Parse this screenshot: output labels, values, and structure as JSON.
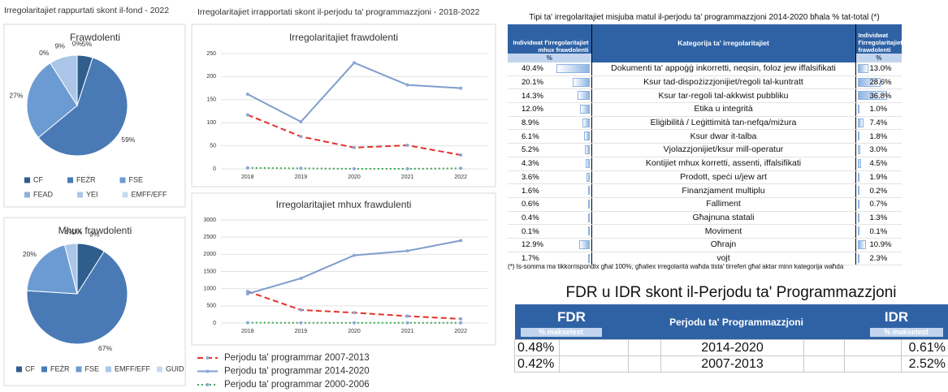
{
  "section_titles": [
    "Irregolaritajiet rappurtati skont il-fond - 2022",
    "Irregolaritajiet irrapportati skont il-perjodu ta' programmazzjoni - 2018-2022"
  ],
  "chart_data": [
    {
      "type": "pie",
      "title": "Frawdolenti",
      "categories": [
        "CF",
        "FEŻR",
        "FSE",
        "FEAD",
        "YEI",
        "EMFF/EFF"
      ],
      "values": [
        5,
        59,
        27,
        0,
        9,
        0
      ],
      "value_labels": [
        "5%",
        "59%",
        "27%",
        "0%",
        "9%",
        "0%"
      ],
      "colors": [
        "#2f5d8c",
        "#4a7ab6",
        "#6b9bd2",
        "#8cb1de",
        "#abc6e8",
        "#c8daf0"
      ]
    },
    {
      "type": "pie",
      "title": "Mhux frawdolenti",
      "categories": [
        "CF",
        "FEŻR",
        "FSE",
        "EMFF/EFF",
        "GUID"
      ],
      "values": [
        9,
        67,
        20,
        4,
        0
      ],
      "value_labels": [
        "9%",
        "67%",
        "20%",
        "4%",
        "0%"
      ],
      "colors": [
        "#2f5d8c",
        "#4a7ab6",
        "#6b9bd2",
        "#abc6e8",
        "#c8daf0"
      ]
    },
    {
      "type": "line",
      "title": "Irregolaritajiet frawdolenti",
      "categories": [
        "2018",
        "2019",
        "2020",
        "2021",
        "2022"
      ],
      "ylim": [
        0,
        250
      ],
      "yticks": [
        0,
        50,
        100,
        150,
        200,
        250
      ],
      "grid": true,
      "series": [
        {
          "name": "Perjodu ta' programmar 2007-2013",
          "color": "#e5322b",
          "style": "dashed",
          "values": [
            117,
            70,
            46,
            51,
            30
          ]
        },
        {
          "name": "Perjodu ta' programmar 2014-2020",
          "color": "#7f9dcc",
          "style": "solid",
          "values": [
            162,
            102,
            230,
            182,
            175
          ]
        },
        {
          "name": "Perjodu ta' programmar 2000-2006",
          "color": "#3aa655",
          "style": "dotted",
          "values": [
            2,
            1,
            0,
            0,
            1
          ]
        }
      ]
    },
    {
      "type": "line",
      "title": "Irregolaritajiet mhux frawdulenti",
      "categories": [
        "2018",
        "2019",
        "2020",
        "2021",
        "2022"
      ],
      "ylim": [
        0,
        3000
      ],
      "yticks": [
        0,
        500,
        1000,
        1500,
        2000,
        2500,
        3000
      ],
      "grid": true,
      "series": [
        {
          "color": "#e5322b",
          "style": "dashed",
          "values": [
            920,
            380,
            300,
            200,
            120
          ]
        },
        {
          "color": "#7f9dcc",
          "style": "solid",
          "values": [
            850,
            1300,
            1970,
            2100,
            2400
          ]
        },
        {
          "color": "#3aa655",
          "style": "dotted",
          "values": [
            10,
            5,
            5,
            5,
            5
          ]
        }
      ]
    }
  ],
  "table1": {
    "title": "Tipi ta' irregolaritajiet misjuba matul il-perjodu ta' programmazzjoni 2014-2020 bħala % tat-total (*)",
    "headers": [
      "Individwat f'irregolaritajiet mhux frawdolenti",
      "Kategorija ta' irregolaritajiet",
      "Individwat f'irregolaritajiet frawdolenti"
    ],
    "subheaders": [
      "%",
      "%"
    ],
    "bar_color": "#8db3e2",
    "rows": [
      {
        "left": 40.4,
        "left_label": "40.4%",
        "category": "Dokumenti ta' appoġġ inkorretti, neqsin, foloz jew iffalsifikati",
        "right": 13.0,
        "right_label": "13.0%"
      },
      {
        "left": 20.1,
        "left_label": "20.1%",
        "category": "Ksur tad-dispożizzjonijiet/regoli tal-kuntratt",
        "right": 28.6,
        "right_label": "28.6%"
      },
      {
        "left": 14.3,
        "left_label": "14.3%",
        "category": "Ksur tar-regoli tal-akkwist pubbliku",
        "right": 36.8,
        "right_label": "36.8%"
      },
      {
        "left": 12.0,
        "left_label": "12.0%",
        "category": "Etika u integrità",
        "right": 1.0,
        "right_label": "1.0%"
      },
      {
        "left": 8.9,
        "left_label": "8.9%",
        "category": "Eliġibilità / Leġittimità tan-nefqa/miżura",
        "right": 7.4,
        "right_label": "7.4%"
      },
      {
        "left": 6.1,
        "left_label": "6.1%",
        "category": "Ksur dwar it-talba",
        "right": 1.8,
        "right_label": "1.8%"
      },
      {
        "left": 5.2,
        "left_label": "5.2%",
        "category": "Vjolazzjonijiet/ksur mill-operatur",
        "right": 3.0,
        "right_label": "3.0%"
      },
      {
        "left": 4.3,
        "left_label": "4.3%",
        "category": "Kontijiet mhux korretti, assenti, iffalsifikati",
        "right": 4.5,
        "right_label": "4.5%"
      },
      {
        "left": 3.6,
        "left_label": "3.6%",
        "category": "Prodott, speċi u/jew art",
        "right": 1.9,
        "right_label": "1.9%"
      },
      {
        "left": 1.6,
        "left_label": "1.6%",
        "category": "Finanzjament multiplu",
        "right": 0.2,
        "right_label": "0.2%"
      },
      {
        "left": 0.6,
        "left_label": "0.6%",
        "category": "Falliment",
        "right": 0.7,
        "right_label": "0.7%"
      },
      {
        "left": 0.4,
        "left_label": "0.4%",
        "category": "Għajnuna statali",
        "right": 1.3,
        "right_label": "1.3%"
      },
      {
        "left": 0.1,
        "left_label": "0.1%",
        "category": "Moviment",
        "right": 0.1,
        "right_label": "0.1%"
      },
      {
        "left": 12.9,
        "left_label": "12.9%",
        "category": "Oħrajn",
        "right": 10.9,
        "right_label": "10.9%"
      },
      {
        "left": 1.7,
        "left_label": "1.7%",
        "category": "vojt",
        "right": 2.3,
        "right_label": "2.3%"
      }
    ],
    "footnote": "(*) Is-somma ma tikkorrispondix għal 100%, għaliex irregolarità waħda tista' tirreferi għal aktar minn kategorija waħda"
  },
  "table2": {
    "title": "FDR u IDR skont il-Perjodu ta' Programmazzjoni",
    "headers": [
      "FDR",
      "Perjodu ta' Programmazzjoni",
      "IDR"
    ],
    "subheaders": [
      "% maksetest",
      "% maksetest"
    ],
    "rows": [
      [
        "0.48%",
        "2014-2020",
        "0.61%"
      ],
      [
        "0.42%",
        "2007-2013",
        "2.52%"
      ]
    ]
  }
}
